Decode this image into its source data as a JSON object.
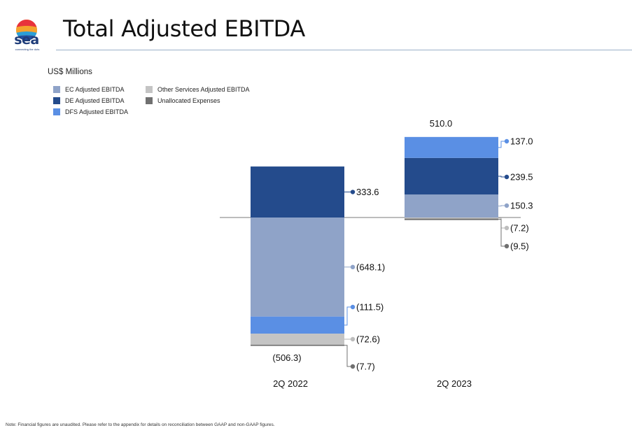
{
  "header": {
    "brand": "sea",
    "tagline": "connecting the dots",
    "title": "Total Adjusted EBITDA"
  },
  "units_label": "US$ Millions",
  "footnote": "Note: Financial figures are unaudited. Please refer to the appendix for details on reconciliation between GAAP and non-GAAP figures.",
  "colors": {
    "ec": "#8fa3c8",
    "de": "#244b8c",
    "dfs": "#5a8fe4",
    "other": "#c4c4c4",
    "unallocated": "#707070",
    "axis": "#7a7a7a"
  },
  "chart_data": {
    "type": "bar",
    "stacked": true,
    "ylabel": "US$ Millions",
    "categories": [
      "2Q 2022",
      "2Q 2023"
    ],
    "series": [
      {
        "key": "ec",
        "name": "EC Adjusted EBITDA",
        "values": [
          -648.1,
          150.3
        ],
        "labels": [
          "(648.1)",
          "150.3"
        ]
      },
      {
        "key": "de",
        "name": "DE Adjusted EBITDA",
        "values": [
          333.6,
          239.5
        ],
        "labels": [
          "333.6",
          "239.5"
        ]
      },
      {
        "key": "dfs",
        "name": "DFS Adjusted EBITDA",
        "values": [
          -111.5,
          137.0
        ],
        "labels": [
          "(111.5)",
          "137.0"
        ]
      },
      {
        "key": "other",
        "name": "Other Services Adjusted EBITDA",
        "values": [
          -72.6,
          -7.2
        ],
        "labels": [
          "(72.6)",
          "(7.2)"
        ]
      },
      {
        "key": "unallocated",
        "name": "Unallocated Expenses",
        "values": [
          -7.7,
          -9.5
        ],
        "labels": [
          "(7.7)",
          "(9.5)"
        ]
      }
    ],
    "totals": [
      -506.3,
      510.0
    ],
    "total_labels": [
      "(506.3)",
      "510.0"
    ]
  }
}
